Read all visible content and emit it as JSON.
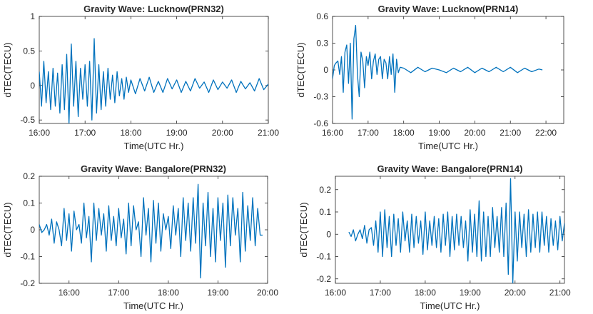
{
  "colors": {
    "line": "#0072BD",
    "axis": "#262626",
    "background": "#ffffff"
  },
  "chart_data": [
    {
      "type": "line",
      "title": "Gravity Wave: Lucknow(PRN32)",
      "xlabel": "Time(UTC Hr.)",
      "ylabel": "dTEC(TECU)",
      "xlim": [
        16.0,
        21.0
      ],
      "ylim": [
        -0.55,
        1.0
      ],
      "xticks": [
        16,
        17,
        18,
        19,
        20,
        21
      ],
      "xticklabels": [
        "16:00",
        "17:00",
        "18:00",
        "19:00",
        "20:00",
        "21:00"
      ],
      "yticks": [
        -0.5,
        0,
        0.5,
        1
      ],
      "yticklabels": [
        "-0.5",
        "0",
        "0.5",
        "1"
      ],
      "x": [
        16.0,
        16.05,
        16.1,
        16.15,
        16.2,
        16.25,
        16.3,
        16.35,
        16.4,
        16.45,
        16.5,
        16.55,
        16.6,
        16.65,
        16.7,
        16.75,
        16.8,
        16.85,
        16.9,
        16.95,
        17.0,
        17.05,
        17.1,
        17.15,
        17.2,
        17.25,
        17.3,
        17.35,
        17.4,
        17.45,
        17.5,
        17.55,
        17.6,
        17.65,
        17.7,
        17.75,
        17.8,
        17.85,
        17.9,
        17.95,
        18.0,
        18.1,
        18.2,
        18.3,
        18.4,
        18.5,
        18.6,
        18.7,
        18.8,
        18.9,
        19.0,
        19.1,
        19.2,
        19.3,
        19.4,
        19.5,
        19.6,
        19.7,
        19.8,
        19.9,
        20.0,
        20.1,
        20.2,
        20.3,
        20.4,
        20.5,
        20.6,
        20.7,
        20.8,
        20.9,
        21.0
      ],
      "y": [
        0.2,
        -0.3,
        0.35,
        -0.25,
        0.2,
        -0.35,
        0.25,
        -0.3,
        0.18,
        -0.4,
        0.3,
        -0.35,
        0.45,
        -0.55,
        0.6,
        -0.3,
        0.35,
        -0.45,
        0.25,
        -0.2,
        0.3,
        -0.3,
        0.35,
        -0.5,
        0.68,
        -0.4,
        0.3,
        -0.35,
        0.2,
        -0.3,
        0.25,
        -0.2,
        0.15,
        -0.25,
        0.2,
        -0.15,
        0.1,
        -0.2,
        0.12,
        -0.1,
        0.08,
        -0.12,
        0.1,
        -0.08,
        0.12,
        -0.1,
        0.06,
        -0.1,
        0.1,
        -0.05,
        0.08,
        -0.1,
        0.06,
        -0.08,
        0.1,
        -0.04,
        0.05,
        -0.1,
        0.08,
        -0.06,
        0.05,
        -0.04,
        0.08,
        -0.1,
        0.06,
        -0.05,
        0.04,
        -0.08,
        0.1,
        -0.06,
        0.02
      ]
    },
    {
      "type": "line",
      "title": "Gravity Wave: Lucknow(PRN14)",
      "xlabel": "Time(UTC Hr.)",
      "ylabel": "dTEC(TECU)",
      "xlim": [
        16.0,
        22.5
      ],
      "ylim": [
        -0.6,
        0.6
      ],
      "xticks": [
        16,
        17,
        18,
        19,
        20,
        21,
        22
      ],
      "xticklabels": [
        "16:00",
        "17:00",
        "18:00",
        "19:00",
        "20:00",
        "21:00",
        "22:00"
      ],
      "yticks": [
        -0.6,
        -0.3,
        0,
        0.3,
        0.6
      ],
      "yticklabels": [
        "-0.6",
        "-0.3",
        "0",
        "0.3",
        "0.6"
      ],
      "x": [
        16.0,
        16.05,
        16.1,
        16.15,
        16.2,
        16.25,
        16.3,
        16.35,
        16.4,
        16.45,
        16.5,
        16.55,
        16.6,
        16.65,
        16.7,
        16.75,
        16.8,
        16.85,
        16.9,
        16.95,
        17.0,
        17.05,
        17.1,
        17.15,
        17.2,
        17.25,
        17.3,
        17.35,
        17.4,
        17.45,
        17.5,
        17.55,
        17.6,
        17.65,
        17.7,
        17.75,
        17.8,
        17.85,
        17.9,
        18.0,
        18.2,
        18.4,
        18.6,
        18.8,
        19.0,
        19.2,
        19.4,
        19.6,
        19.8,
        20.0,
        20.2,
        20.4,
        20.6,
        20.8,
        21.0,
        21.2,
        21.4,
        21.6,
        21.8,
        21.9
      ],
      "y": [
        -0.1,
        0.05,
        0.08,
        0.1,
        -0.05,
        0.15,
        -0.25,
        0.2,
        0.28,
        -0.15,
        0.3,
        -0.55,
        0.35,
        0.5,
        -0.05,
        -0.3,
        0.2,
        0.1,
        -0.2,
        0.15,
        0.05,
        0.2,
        -0.1,
        0.1,
        0.18,
        -0.05,
        0.12,
        0.15,
        -0.1,
        0.12,
        0.08,
        -0.1,
        0.15,
        -0.05,
        0.18,
        -0.25,
        0.12,
        -0.03,
        0.03,
        0.02,
        -0.03,
        0.03,
        -0.02,
        0.02,
        0.0,
        -0.03,
        0.02,
        -0.02,
        0.03,
        -0.03,
        0.02,
        -0.02,
        0.03,
        -0.02,
        0.03,
        -0.03,
        0.02,
        -0.02,
        0.01,
        0.0
      ]
    },
    {
      "type": "line",
      "title": "Gravity Wave: Bangalore(PRN32)",
      "xlabel": "Time(UTC Hr.)",
      "ylabel": "dTEC(TECU)",
      "xlim": [
        15.4,
        20.0
      ],
      "ylim": [
        -0.2,
        0.2
      ],
      "xticks": [
        16,
        17,
        18,
        19,
        20
      ],
      "xticklabels": [
        "16:00",
        "17:00",
        "18:00",
        "19:00",
        "20:00"
      ],
      "yticks": [
        -0.2,
        -0.1,
        0,
        0.1,
        0.2
      ],
      "yticklabels": [
        "-0.2",
        "-0.1",
        "0",
        "0.1",
        "0.2"
      ],
      "x": [
        15.4,
        15.45,
        15.5,
        15.55,
        15.6,
        15.65,
        15.7,
        15.75,
        15.8,
        15.85,
        15.9,
        15.95,
        16.0,
        16.05,
        16.1,
        16.15,
        16.2,
        16.25,
        16.3,
        16.35,
        16.4,
        16.45,
        16.5,
        16.55,
        16.6,
        16.65,
        16.7,
        16.75,
        16.8,
        16.85,
        16.9,
        16.95,
        17.0,
        17.05,
        17.1,
        17.15,
        17.2,
        17.25,
        17.3,
        17.35,
        17.4,
        17.45,
        17.5,
        17.55,
        17.6,
        17.65,
        17.7,
        17.75,
        17.8,
        17.85,
        17.9,
        17.95,
        18.0,
        18.05,
        18.1,
        18.15,
        18.2,
        18.25,
        18.3,
        18.35,
        18.4,
        18.45,
        18.5,
        18.55,
        18.6,
        18.65,
        18.7,
        18.75,
        18.8,
        18.85,
        18.9,
        18.95,
        19.0,
        19.05,
        19.1,
        19.15,
        19.2,
        19.25,
        19.3,
        19.35,
        19.4,
        19.45,
        19.5,
        19.55,
        19.6,
        19.65,
        19.7,
        19.75,
        19.8,
        19.85,
        19.9
      ],
      "y": [
        0.02,
        -0.01,
        0.0,
        0.02,
        -0.02,
        0.04,
        -0.05,
        0.03,
        0.0,
        -0.06,
        0.08,
        -0.04,
        0.06,
        -0.08,
        0.07,
        0.0,
        0.02,
        -0.05,
        0.1,
        -0.03,
        0.05,
        -0.12,
        0.1,
        -0.04,
        0.08,
        -0.02,
        0.06,
        -0.08,
        0.09,
        -0.04,
        0.05,
        -0.06,
        0.08,
        -0.03,
        0.04,
        -0.09,
        0.1,
        -0.06,
        0.09,
        0.0,
        0.03,
        -0.1,
        0.12,
        -0.02,
        0.08,
        -0.12,
        0.11,
        -0.05,
        0.1,
        -0.08,
        0.06,
        0.0,
        0.05,
        -0.07,
        0.09,
        -0.02,
        0.08,
        -0.1,
        0.12,
        -0.04,
        0.1,
        -0.08,
        0.12,
        -0.05,
        0.17,
        -0.18,
        0.1,
        -0.06,
        0.14,
        -0.1,
        0.08,
        -0.12,
        0.12,
        -0.04,
        0.1,
        -0.14,
        0.13,
        -0.06,
        0.12,
        -0.02,
        0.08,
        -0.12,
        0.14,
        -0.08,
        0.09,
        -0.04,
        0.12,
        -0.06,
        0.08,
        -0.02,
        -0.02
      ]
    },
    {
      "type": "line",
      "title": "Gravity Wave: Bangalore(PRN14)",
      "xlabel": "Time(UTC Hr.)",
      "ylabel": "dTEC(TECU)",
      "xlim": [
        16.0,
        21.1
      ],
      "ylim": [
        -0.22,
        0.26
      ],
      "xticks": [
        16,
        17,
        18,
        19,
        20,
        21
      ],
      "xticklabels": [
        "16:00",
        "17:00",
        "18:00",
        "19:00",
        "20:00",
        "21:00"
      ],
      "yticks": [
        -0.2,
        -0.1,
        0,
        0.1,
        0.2
      ],
      "yticklabels": [
        "-0.2",
        "-0.1",
        "0",
        "0.1",
        "0.2"
      ],
      "x": [
        16.3,
        16.35,
        16.4,
        16.45,
        16.5,
        16.55,
        16.6,
        16.65,
        16.7,
        16.75,
        16.8,
        16.85,
        16.9,
        16.95,
        17.0,
        17.05,
        17.1,
        17.15,
        17.2,
        17.25,
        17.3,
        17.35,
        17.4,
        17.45,
        17.5,
        17.55,
        17.6,
        17.65,
        17.7,
        17.75,
        17.8,
        17.85,
        17.9,
        17.95,
        18.0,
        18.05,
        18.1,
        18.15,
        18.2,
        18.25,
        18.3,
        18.35,
        18.4,
        18.45,
        18.5,
        18.55,
        18.6,
        18.65,
        18.7,
        18.75,
        18.8,
        18.85,
        18.9,
        18.95,
        19.0,
        19.05,
        19.1,
        19.15,
        19.2,
        19.25,
        19.3,
        19.35,
        19.4,
        19.45,
        19.5,
        19.55,
        19.6,
        19.65,
        19.7,
        19.75,
        19.8,
        19.85,
        19.9,
        19.95,
        20.0,
        20.05,
        20.1,
        20.15,
        20.2,
        20.25,
        20.3,
        20.35,
        20.4,
        20.45,
        20.5,
        20.55,
        20.6,
        20.65,
        20.7,
        20.75,
        20.8,
        20.85,
        20.9,
        20.95,
        21.0,
        21.05,
        21.1
      ],
      "y": [
        0.01,
        -0.01,
        0.02,
        -0.03,
        0.0,
        0.02,
        -0.02,
        0.04,
        -0.04,
        0.02,
        0.03,
        -0.05,
        0.06,
        -0.08,
        0.1,
        -0.1,
        0.11,
        -0.06,
        0.08,
        -0.1,
        0.09,
        -0.05,
        0.07,
        -0.08,
        0.1,
        -0.03,
        0.06,
        -0.08,
        0.09,
        -0.06,
        0.08,
        -0.04,
        0.06,
        -0.09,
        0.1,
        -0.07,
        0.06,
        -0.05,
        0.08,
        -0.06,
        0.07,
        -0.08,
        0.09,
        -0.05,
        0.1,
        -0.1,
        0.08,
        -0.07,
        0.09,
        -0.05,
        0.08,
        -0.06,
        0.06,
        -0.12,
        0.11,
        -0.08,
        0.09,
        -0.1,
        0.15,
        -0.12,
        0.1,
        -0.1,
        0.08,
        -0.1,
        0.12,
        -0.06,
        0.08,
        -0.08,
        0.12,
        -0.1,
        0.14,
        -0.18,
        0.25,
        -0.22,
        0.1,
        -0.12,
        0.1,
        -0.06,
        0.09,
        -0.1,
        0.11,
        -0.08,
        0.09,
        -0.06,
        0.1,
        -0.08,
        0.1,
        -0.05,
        0.08,
        -0.08,
        0.07,
        -0.05,
        0.06,
        -0.07,
        0.08,
        -0.03,
        0.05
      ]
    }
  ]
}
